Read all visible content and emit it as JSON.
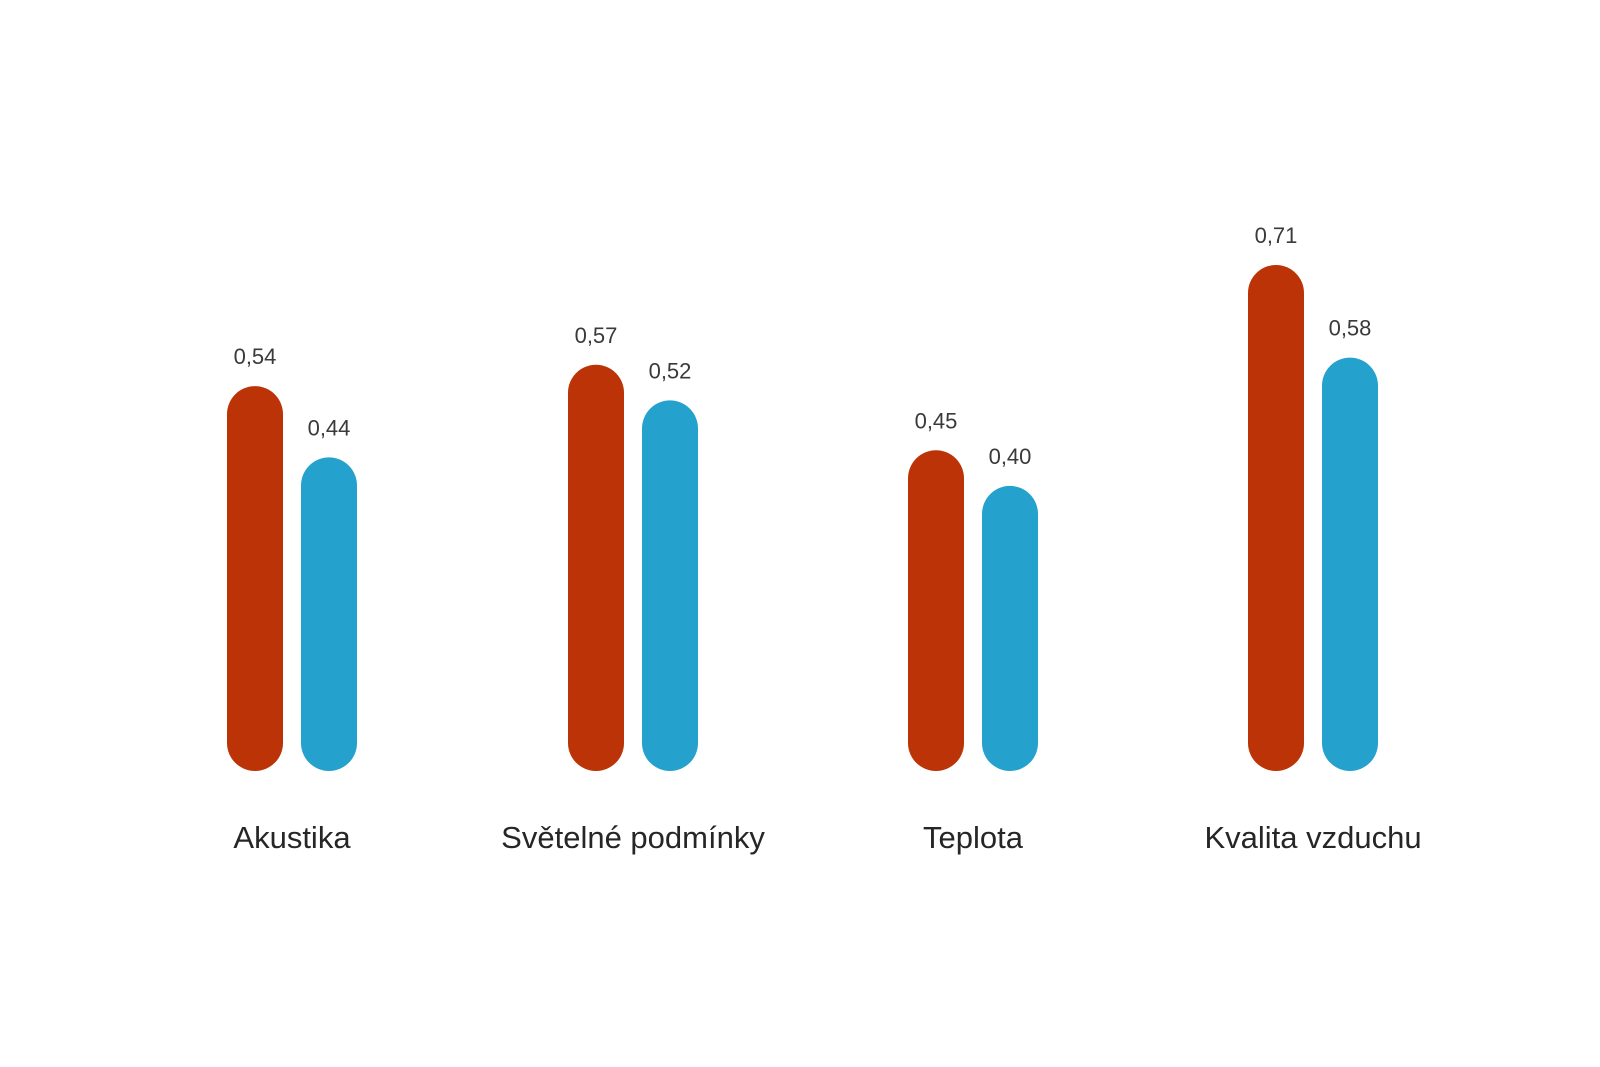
{
  "chart_data": {
    "type": "bar",
    "categories": [
      "Akustika",
      "Světelné podmínky",
      "Teplota",
      "Kvalita vzduchu"
    ],
    "series": [
      {
        "values": [
          0.54,
          0.57,
          0.45,
          0.71
        ],
        "labels": [
          "0,54",
          "0,57",
          "0,45",
          "0,71"
        ],
        "color": "#BB3306"
      },
      {
        "values": [
          0.44,
          0.52,
          0.4,
          0.58
        ],
        "labels": [
          "0,44",
          "0,52",
          "0,40",
          "0,58"
        ],
        "color": "#24A2CD"
      }
    ],
    "title": "",
    "xlabel": "",
    "ylabel": "",
    "ylim": [
      0,
      0.71
    ],
    "grid": false,
    "legend": "none"
  }
}
